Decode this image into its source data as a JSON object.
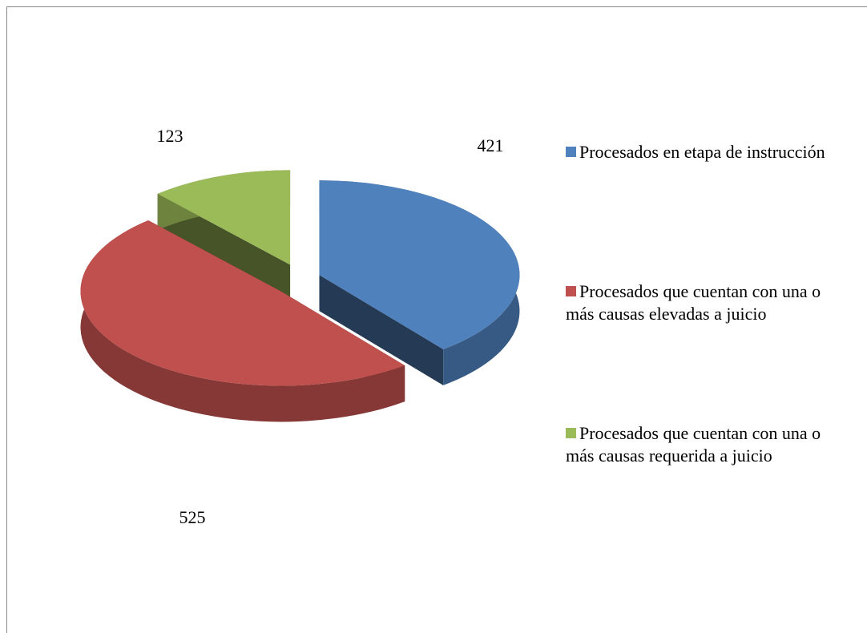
{
  "chart_data": {
    "type": "pie",
    "categories": [
      "Procesados en etapa de instrucción",
      "Procesados que cuentan con una o más causas elevadas a juicio",
      "Procesados que cuentan con una o más causas requerida a juicio"
    ],
    "values": [
      421,
      525,
      123
    ],
    "colors": [
      "#4f81bd",
      "#c0504d",
      "#9bbb59"
    ],
    "legend": "right"
  }
}
